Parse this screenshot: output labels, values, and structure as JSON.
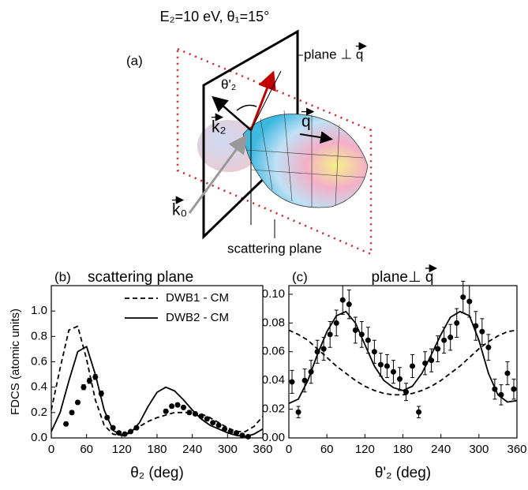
{
  "figure": {
    "title": "E₂=10 eV, θ₁=15°",
    "panel": "(a)",
    "plane_label": "plane ⊥ q",
    "theta_label": "θ'₂",
    "k2_label": "k₂",
    "q_label": "q",
    "k0_label": "k₀",
    "scattering_label": "scattering plane"
  },
  "chart_data": [
    {
      "type": "line",
      "panel": "(b)",
      "title": "scattering plane",
      "ylabel": "FDCS (atomic units)",
      "xlabel": "θ₂ (deg)",
      "xlim": [
        0,
        360
      ],
      "xticks": [
        0,
        60,
        120,
        180,
        240,
        300,
        360
      ],
      "ylim": [
        0,
        1.2
      ],
      "yticks": [
        {
          "value": 0,
          "label": "0.0"
        },
        0.2,
        0.4,
        0.6,
        0.8,
        {
          "value": 1,
          "label": "1.0"
        }
      ],
      "legend": "top-right",
      "series": [
        {
          "name": "DWB1 - CM",
          "color": "#000000",
          "style": "dashed",
          "x": [
            0,
            15,
            30,
            45,
            60,
            75,
            90,
            105,
            120,
            135,
            150,
            165,
            180,
            195,
            210,
            225,
            240,
            255,
            270,
            285,
            300,
            315,
            330,
            345,
            360
          ],
          "values": [
            0.22,
            0.55,
            0.85,
            0.88,
            0.62,
            0.3,
            0.1,
            0.03,
            0.02,
            0.05,
            0.09,
            0.13,
            0.16,
            0.18,
            0.2,
            0.2,
            0.2,
            0.19,
            0.16,
            0.12,
            0.08,
            0.05,
            0.05,
            0.09,
            0.17
          ]
        },
        {
          "name": "DWB2 - CM",
          "color": "#000000",
          "style": "solid",
          "x": [
            0,
            15,
            30,
            45,
            60,
            75,
            90,
            105,
            120,
            135,
            150,
            165,
            180,
            195,
            210,
            225,
            240,
            255,
            270,
            285,
            300,
            315,
            330,
            345,
            360
          ],
          "values": [
            0.05,
            0.2,
            0.45,
            0.68,
            0.72,
            0.5,
            0.22,
            0.06,
            0.02,
            0.04,
            0.12,
            0.25,
            0.36,
            0.4,
            0.37,
            0.3,
            0.22,
            0.15,
            0.1,
            0.07,
            0.04,
            0.02,
            0.01,
            0.03,
            0.07
          ]
        },
        {
          "color": "#000000",
          "style": "markers",
          "x": [
            25,
            35,
            45,
            55,
            65,
            75,
            85,
            95,
            105,
            115,
            125,
            135,
            145,
            195,
            205,
            215,
            225,
            235,
            245,
            255,
            265,
            275,
            285,
            295,
            305,
            315,
            325,
            335
          ],
          "values": [
            0.11,
            0.2,
            0.28,
            0.4,
            0.45,
            0.48,
            0.35,
            0.16,
            0.08,
            0.04,
            0.03,
            0.05,
            0.08,
            0.21,
            0.25,
            0.26,
            0.24,
            0.2,
            0.19,
            0.17,
            0.15,
            0.12,
            0.1,
            0.07,
            0.05,
            0.04,
            0.02,
            0.01
          ],
          "errors": [
            0.015,
            0.015,
            0.015,
            0.02,
            0.02,
            0.02,
            0.02,
            0.015,
            0.01,
            0.01,
            0.01,
            0.01,
            0.01,
            0.015,
            0.015,
            0.015,
            0.015,
            0.015,
            0.015,
            0.01,
            0.01,
            0.01,
            0.01,
            0.01,
            0.01,
            0.01,
            0.01,
            0.01
          ]
        }
      ]
    },
    {
      "type": "line",
      "panel": "(c)",
      "title": "plane⊥ q",
      "xlabel": "θ'₂ (deg)",
      "xlim": [
        0,
        360
      ],
      "xticks": [
        0,
        60,
        120,
        180,
        240,
        300,
        360
      ],
      "ylim": [
        0,
        0.106
      ],
      "yticks": [
        {
          "value": 0,
          "label": "0.00"
        },
        0.02,
        0.04,
        0.06,
        0.08,
        {
          "value": 0.1,
          "label": "0.10"
        }
      ],
      "series": [
        {
          "color": "#000000",
          "style": "dashed",
          "x": [
            0,
            15,
            30,
            45,
            60,
            75,
            90,
            105,
            120,
            135,
            150,
            165,
            180,
            195,
            210,
            225,
            240,
            255,
            270,
            285,
            300,
            315,
            330,
            345,
            360
          ],
          "values": [
            0.075,
            0.072,
            0.068,
            0.062,
            0.056,
            0.05,
            0.045,
            0.04,
            0.036,
            0.033,
            0.031,
            0.03,
            0.03,
            0.031,
            0.033,
            0.036,
            0.04,
            0.045,
            0.05,
            0.056,
            0.062,
            0.067,
            0.071,
            0.074,
            0.075
          ]
        },
        {
          "color": "#000000",
          "style": "solid",
          "x": [
            0,
            15,
            30,
            45,
            60,
            75,
            90,
            105,
            120,
            135,
            150,
            165,
            180,
            195,
            210,
            225,
            240,
            255,
            270,
            285,
            300,
            315,
            330,
            345,
            360
          ],
          "values": [
            0.024,
            0.027,
            0.04,
            0.058,
            0.074,
            0.085,
            0.088,
            0.08,
            0.065,
            0.05,
            0.04,
            0.035,
            0.033,
            0.036,
            0.045,
            0.058,
            0.072,
            0.084,
            0.088,
            0.085,
            0.068,
            0.045,
            0.03,
            0.025,
            0.026
          ]
        },
        {
          "color": "#000000",
          "style": "markers",
          "x": [
            5,
            15,
            25,
            35,
            45,
            55,
            65,
            75,
            85,
            95,
            105,
            115,
            125,
            135,
            145,
            155,
            165,
            175,
            185,
            195,
            205,
            215,
            225,
            235,
            245,
            255,
            265,
            275,
            285,
            295,
            305,
            315,
            325,
            335,
            345,
            355
          ],
          "values": [
            0.039,
            0.018,
            0.04,
            0.046,
            0.06,
            0.062,
            0.072,
            0.08,
            0.096,
            0.093,
            0.075,
            0.072,
            0.068,
            0.06,
            0.051,
            0.05,
            0.046,
            0.041,
            0.032,
            0.05,
            0.018,
            0.052,
            0.054,
            0.062,
            0.068,
            0.07,
            0.08,
            0.098,
            0.095,
            0.078,
            0.074,
            0.063,
            0.034,
            0.03,
            0.045,
            0.034
          ],
          "errors": [
            0.008,
            0.004,
            0.008,
            0.008,
            0.008,
            0.008,
            0.009,
            0.009,
            0.01,
            0.01,
            0.009,
            0.009,
            0.009,
            0.008,
            0.008,
            0.008,
            0.008,
            0.008,
            0.006,
            0.008,
            0.004,
            0.008,
            0.008,
            0.009,
            0.009,
            0.009,
            0.01,
            0.011,
            0.011,
            0.01,
            0.009,
            0.009,
            0.007,
            0.007,
            0.008,
            0.007
          ]
        }
      ]
    }
  ]
}
